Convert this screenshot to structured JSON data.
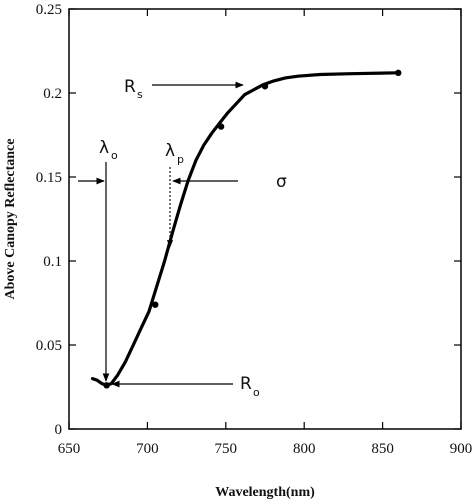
{
  "chart_data": {
    "type": "line",
    "title": "",
    "xlabel": "Wavelength(nm)",
    "ylabel": "Above Canopy Reflectance",
    "xlim": [
      650,
      900
    ],
    "ylim": [
      0,
      0.25
    ],
    "x_ticks": [
      650,
      700,
      750,
      800,
      850,
      900
    ],
    "y_ticks": [
      0,
      0.05,
      0.1,
      0.15,
      0.2,
      0.25
    ],
    "x_tick_labels": [
      "650",
      "700",
      "750",
      "800",
      "850",
      "900"
    ],
    "y_tick_labels": [
      "0",
      "0.05",
      "0.1",
      "0.15",
      "0.2",
      "0.25"
    ],
    "grid": false,
    "legend": "none",
    "series": [
      {
        "curve": [
          [
            665,
            0.03
          ],
          [
            668,
            0.029
          ],
          [
            671,
            0.027
          ],
          [
            674,
            0.026
          ],
          [
            677,
            0.027
          ],
          [
            681,
            0.032
          ],
          [
            686,
            0.04
          ],
          [
            691,
            0.05
          ],
          [
            696,
            0.06
          ],
          [
            701,
            0.07
          ],
          [
            706,
            0.085
          ],
          [
            711,
            0.1
          ],
          [
            716,
            0.117
          ],
          [
            721,
            0.133
          ],
          [
            726,
            0.148
          ],
          [
            731,
            0.16
          ],
          [
            736,
            0.169
          ],
          [
            741,
            0.176
          ],
          [
            746,
            0.182
          ],
          [
            751,
            0.188
          ],
          [
            756,
            0.193
          ],
          [
            762,
            0.199
          ],
          [
            768,
            0.202
          ],
          [
            774,
            0.205
          ],
          [
            780,
            0.207
          ],
          [
            788,
            0.209
          ],
          [
            796,
            0.21
          ],
          [
            810,
            0.211
          ],
          [
            830,
            0.2115
          ],
          [
            860,
            0.212
          ]
        ],
        "points": [
          [
            674,
            0.026
          ],
          [
            705,
            0.074
          ],
          [
            747,
            0.18
          ],
          [
            775,
            0.204
          ],
          [
            860,
            0.212
          ]
        ],
        "color": "#000000"
      }
    ],
    "annotations": [
      {
        "label": "R",
        "sub": "s"
      },
      {
        "label": "λ",
        "sub": "o"
      },
      {
        "label": "λ",
        "sub": "p"
      },
      {
        "label": "σ",
        "sub": ""
      },
      {
        "label": "R",
        "sub": "o"
      }
    ]
  }
}
